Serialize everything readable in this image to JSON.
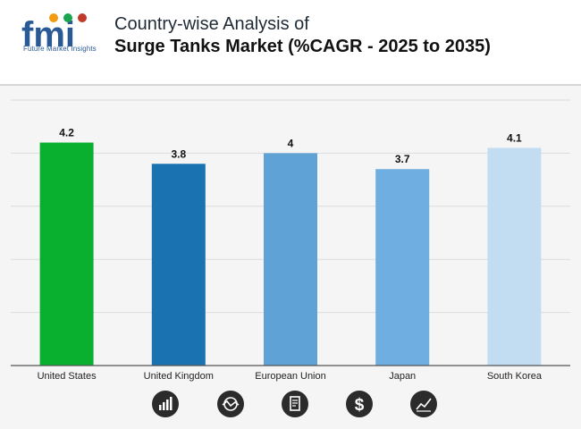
{
  "header": {
    "logo_text": "fmi",
    "logo_sub": "Future Market Insights",
    "title_line1": "Country-wise Analysis of",
    "title_line2": "Surge Tanks Market (%CAGR - 2025 to 2035)"
  },
  "icons": [
    "bar-chart-icon",
    "globe-trend-icon",
    "document-icon",
    "dollar-icon",
    "line-chart-icon"
  ],
  "chart_data": {
    "type": "bar",
    "title": "Country-wise Analysis of Surge Tanks Market (%CAGR - 2025 to 2035)",
    "categories": [
      "United States",
      "United Kingdom",
      "European Union",
      "Japan",
      "South Korea"
    ],
    "values": [
      4.2,
      3.8,
      4,
      3.7,
      4.1
    ],
    "labels": [
      "4.2",
      "3.8",
      "4",
      "3.7",
      "4.1"
    ],
    "colors": [
      "#09b02f",
      "#1a72b1",
      "#5ea2d6",
      "#6faee0",
      "#c2dcf1"
    ],
    "ylim": [
      0,
      5
    ],
    "grid": true,
    "legend": "none"
  }
}
